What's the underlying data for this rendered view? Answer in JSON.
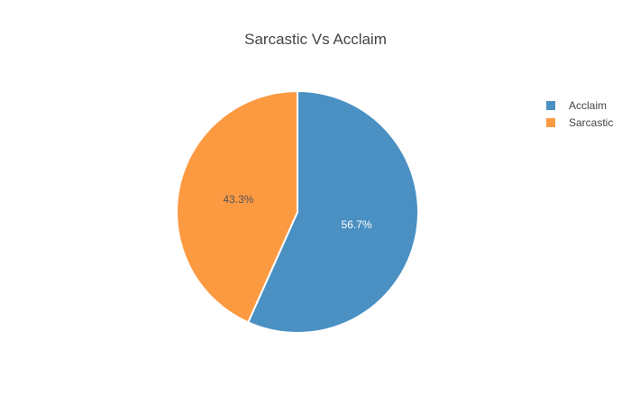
{
  "chart_data": {
    "type": "pie",
    "title": "Sarcastic Vs Acclaim",
    "slices": [
      {
        "label": "Acclaim",
        "value": 56.7,
        "display": "56.7%",
        "color": "#4a90c2"
      },
      {
        "label": "Sarcastic",
        "value": 43.3,
        "display": "43.3%",
        "color": "#fc9a42"
      }
    ],
    "legend": {
      "placement": "top-right",
      "entries": [
        "Acclaim",
        "Sarcastic"
      ]
    }
  }
}
